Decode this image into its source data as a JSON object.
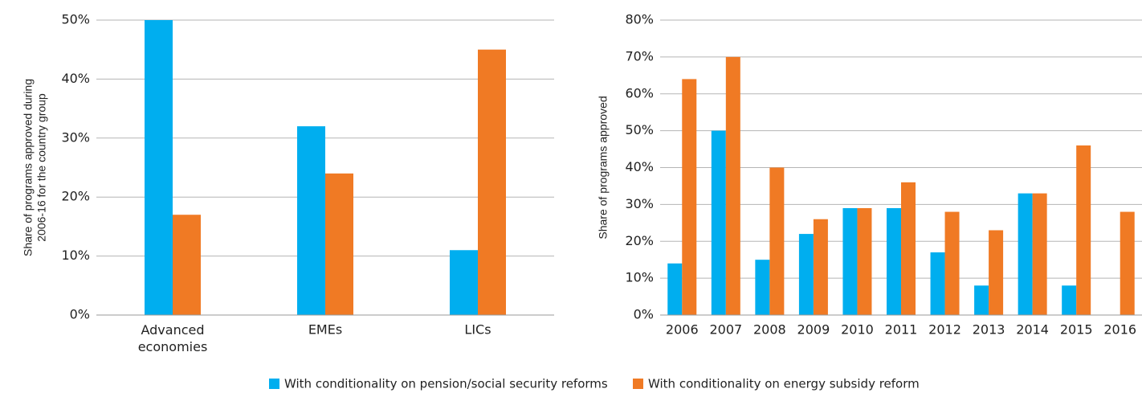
{
  "chart_data": [
    {
      "type": "bar",
      "ylabel": [
        "Share of programs approved during",
        "2006-16 for the country group"
      ],
      "categories": [
        "Advanced economies",
        "EMEs",
        "LICs"
      ],
      "series": [
        {
          "name": "With conditionality on pension/social security reforms",
          "color": "#00aeef",
          "values": [
            50,
            32,
            11
          ]
        },
        {
          "name": "With conditionality on energy subsidy reform",
          "color": "#f07a24",
          "values": [
            17,
            24,
            45
          ]
        }
      ],
      "ylim": [
        0,
        50
      ],
      "yticks": [
        {
          "value": 0,
          "label": "0%"
        },
        {
          "value": 10,
          "label": "10%"
        },
        {
          "value": 20,
          "label": "20%"
        },
        {
          "value": 30,
          "label": "30%"
        },
        {
          "value": 40,
          "label": "40%"
        },
        {
          "value": 50,
          "label": "50%"
        }
      ],
      "grid": true
    },
    {
      "type": "bar",
      "ylabel": [
        "Share of programs approved"
      ],
      "categories": [
        "2006",
        "2007",
        "2008",
        "2009",
        "2010",
        "2011",
        "2012",
        "2013",
        "2014",
        "2015",
        "2016"
      ],
      "series": [
        {
          "color": "#00aeef",
          "values": [
            14,
            50,
            15,
            22,
            29,
            29,
            17,
            8,
            33,
            8,
            0
          ]
        },
        {
          "color": "#f07a24",
          "values": [
            64,
            70,
            40,
            26,
            29,
            36,
            28,
            23,
            33,
            46,
            28
          ]
        }
      ],
      "ylim": [
        0,
        80
      ],
      "yticks": [
        {
          "value": 0,
          "label": "0%"
        },
        {
          "value": 10,
          "label": "10%"
        },
        {
          "value": 20,
          "label": "20%"
        },
        {
          "value": 30,
          "label": "30%"
        },
        {
          "value": 40,
          "label": "40%"
        },
        {
          "value": 50,
          "label": "50%"
        },
        {
          "value": 60,
          "label": "60%"
        },
        {
          "value": 70,
          "label": "70%"
        },
        {
          "value": 80,
          "label": "80%"
        }
      ],
      "grid": true
    }
  ]
}
